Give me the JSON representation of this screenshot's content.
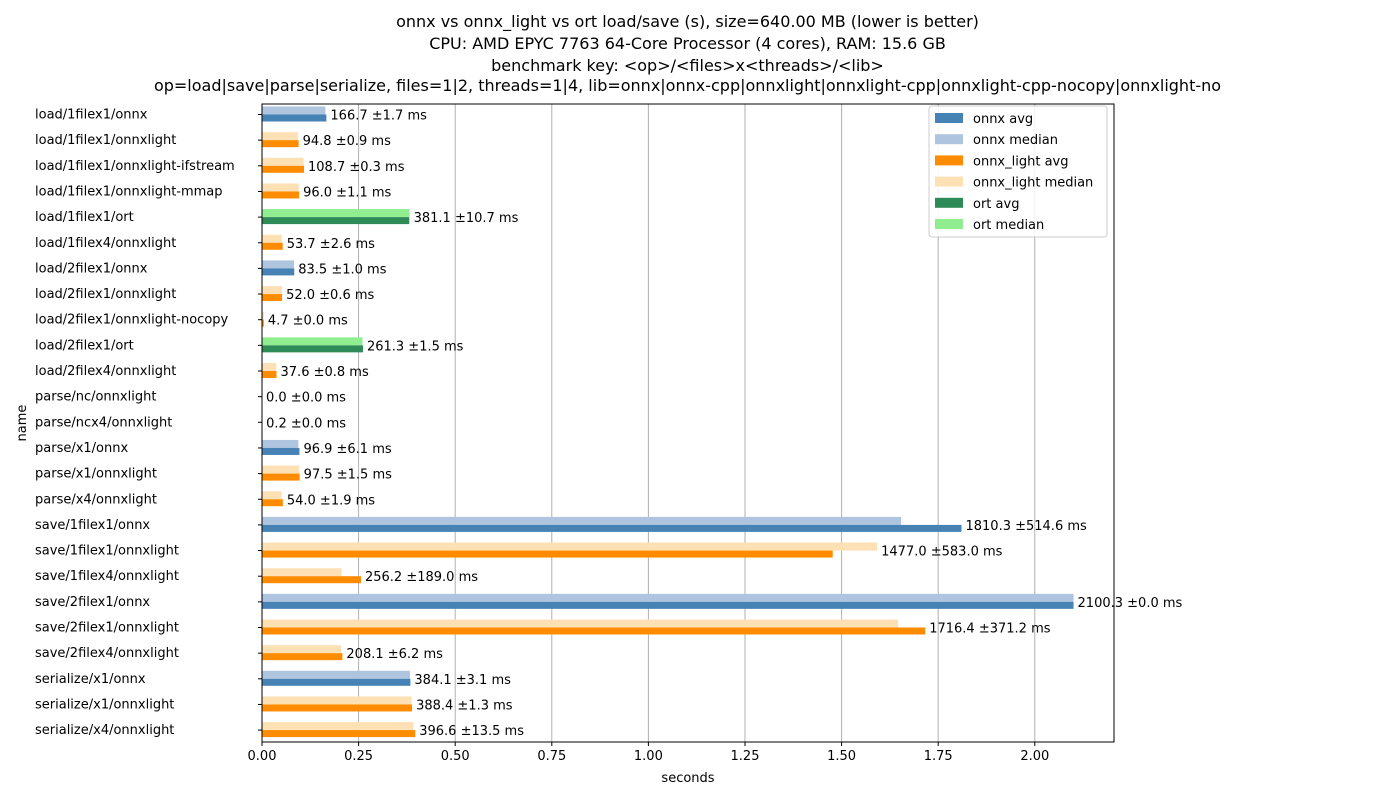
{
  "chart_data": {
    "type": "bar",
    "orientation": "horizontal",
    "title": [
      "onnx vs onnx_light vs ort load/save (s), size=640.00 MB (lower is better)",
      "CPU: AMD EPYC 7763 64-Core Processor (4 cores), RAM: 15.6 GB",
      "benchmark key: <op>/<files>x<threads>/<lib>",
      "op=load|save|parse|serialize, files=1|2, threads=1|4, lib=onnx|onnx-cpp|onnxlight|onnxlight-cpp|onnxlight-cpp-nocopy|onnxlight-no"
    ],
    "xlabel": "seconds",
    "ylabel": "name",
    "xlim": [
      0,
      2.205
    ],
    "xticks": [
      "0.00",
      "0.25",
      "0.50",
      "0.75",
      "1.00",
      "1.25",
      "1.50",
      "1.75",
      "2.00"
    ],
    "grid": "x",
    "legend_position": "top-right",
    "legend": [
      {
        "label": "onnx avg",
        "color": "#4682b4"
      },
      {
        "label": "onnx median",
        "color": "#aec4df"
      },
      {
        "label": "onnx_light avg",
        "color": "#ff8c00"
      },
      {
        "label": "onnx_light median",
        "color": "#fde1b5"
      },
      {
        "label": "ort avg",
        "color": "#2e8b57"
      },
      {
        "label": "ort median",
        "color": "#90ee90"
      }
    ],
    "colors": {
      "onnx": {
        "avg": "#4682b4",
        "median": "#aec4df"
      },
      "onnxlight": {
        "avg": "#ff8c00",
        "median": "#fde1b5"
      },
      "ort": {
        "avg": "#2e8b57",
        "median": "#90ee90"
      }
    },
    "rows": [
      {
        "name": "load/1filex1/onnx",
        "lib": "onnx",
        "avg": 0.1667,
        "median": 0.164,
        "label": "166.7 ±1.7 ms"
      },
      {
        "name": "load/1filex1/onnxlight",
        "lib": "onnxlight",
        "avg": 0.0948,
        "median": 0.093,
        "label": "94.8 ±0.9 ms"
      },
      {
        "name": "load/1filex1/onnxlight-ifstream",
        "lib": "onnxlight",
        "avg": 0.1087,
        "median": 0.108,
        "label": "108.7 ±0.3 ms"
      },
      {
        "name": "load/1filex1/onnxlight-mmap",
        "lib": "onnxlight",
        "avg": 0.096,
        "median": 0.095,
        "label": "96.0 ±1.1 ms"
      },
      {
        "name": "load/1filex1/ort",
        "lib": "ort",
        "avg": 0.3811,
        "median": 0.382,
        "label": "381.1 ±10.7 ms"
      },
      {
        "name": "load/1filex4/onnxlight",
        "lib": "onnxlight",
        "avg": 0.0537,
        "median": 0.051,
        "label": "53.7 ±2.6 ms"
      },
      {
        "name": "load/2filex1/onnx",
        "lib": "onnx",
        "avg": 0.0835,
        "median": 0.083,
        "label": "83.5 ±1.0 ms"
      },
      {
        "name": "load/2filex1/onnxlight",
        "lib": "onnxlight",
        "avg": 0.052,
        "median": 0.052,
        "label": "52.0 ±0.6 ms"
      },
      {
        "name": "load/2filex1/onnxlight-nocopy",
        "lib": "onnxlight",
        "avg": 0.0047,
        "median": 0.0047,
        "label": "4.7 ±0.0 ms"
      },
      {
        "name": "load/2filex1/ort",
        "lib": "ort",
        "avg": 0.2613,
        "median": 0.26,
        "label": "261.3 ±1.5 ms"
      },
      {
        "name": "load/2filex4/onnxlight",
        "lib": "onnxlight",
        "avg": 0.0376,
        "median": 0.037,
        "label": "37.6 ±0.8 ms"
      },
      {
        "name": "parse/nc/onnxlight",
        "lib": "onnxlight",
        "avg": 0.0,
        "median": 0.0,
        "label": "0.0 ±0.0 ms"
      },
      {
        "name": "parse/ncx4/onnxlight",
        "lib": "onnxlight",
        "avg": 0.0002,
        "median": 0.0002,
        "label": "0.2 ±0.0 ms"
      },
      {
        "name": "parse/x1/onnx",
        "lib": "onnx",
        "avg": 0.0969,
        "median": 0.094,
        "label": "96.9 ±6.1 ms"
      },
      {
        "name": "parse/x1/onnxlight",
        "lib": "onnxlight",
        "avg": 0.0975,
        "median": 0.096,
        "label": "97.5 ±1.5 ms"
      },
      {
        "name": "parse/x4/onnxlight",
        "lib": "onnxlight",
        "avg": 0.054,
        "median": 0.051,
        "label": "54.0 ±1.9 ms"
      },
      {
        "name": "save/1filex1/onnx",
        "lib": "onnx",
        "avg": 1.8103,
        "median": 1.654,
        "label": "1810.3 ±514.6 ms"
      },
      {
        "name": "save/1filex1/onnxlight",
        "lib": "onnxlight",
        "avg": 1.477,
        "median": 1.592,
        "label": "1477.0 ±583.0 ms"
      },
      {
        "name": "save/1filex4/onnxlight",
        "lib": "onnxlight",
        "avg": 0.2562,
        "median": 0.206,
        "label": "256.2 ±189.0 ms"
      },
      {
        "name": "save/2filex1/onnx",
        "lib": "onnx",
        "avg": 2.1003,
        "median": 2.1003,
        "label": "2100.3 ±0.0 ms"
      },
      {
        "name": "save/2filex1/onnxlight",
        "lib": "onnxlight",
        "avg": 1.7164,
        "median": 1.646,
        "label": "1716.4 ±371.2 ms"
      },
      {
        "name": "save/2filex4/onnxlight",
        "lib": "onnxlight",
        "avg": 0.2081,
        "median": 0.205,
        "label": "208.1 ±6.2 ms"
      },
      {
        "name": "serialize/x1/onnx",
        "lib": "onnx",
        "avg": 0.3841,
        "median": 0.383,
        "label": "384.1 ±3.1 ms"
      },
      {
        "name": "serialize/x1/onnxlight",
        "lib": "onnxlight",
        "avg": 0.3884,
        "median": 0.387,
        "label": "388.4 ±1.3 ms"
      },
      {
        "name": "serialize/x4/onnxlight",
        "lib": "onnxlight",
        "avg": 0.3966,
        "median": 0.392,
        "label": "396.6 ±13.5 ms"
      }
    ]
  }
}
